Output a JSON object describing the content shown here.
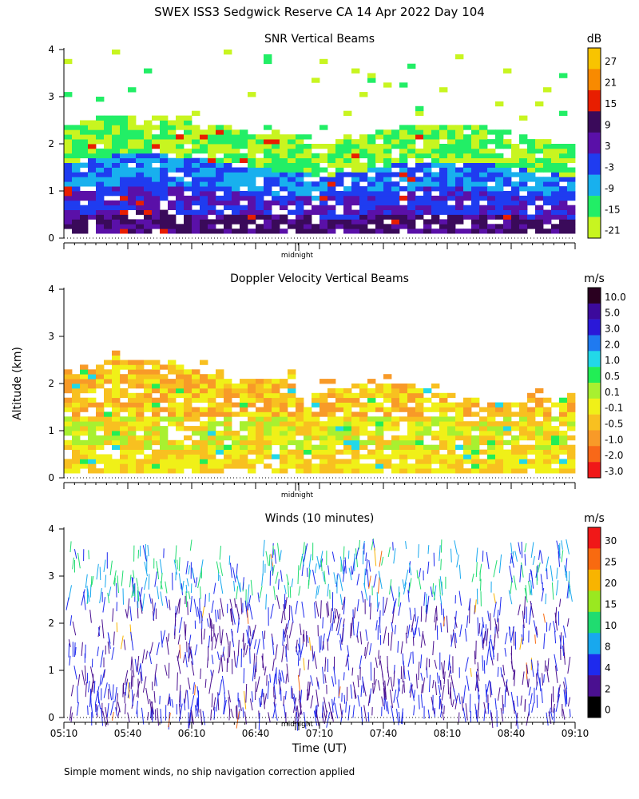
{
  "page": {
    "title": "SWEX ISS3 Sedgwick Reserve CA  14 Apr 2022 Day 104",
    "ylabel": "Altitude (km)",
    "xlabel": "Time (UT)",
    "footer": "Simple moment winds, no ship navigation correction applied",
    "midnight_label": "midnight"
  },
  "chart_data": [
    {
      "type": "heatmap",
      "title": "SNR Vertical Beams",
      "ylim": [
        0,
        4
      ],
      "yticks": [
        "0",
        "1",
        "2",
        "3",
        "4"
      ],
      "colorbar": {
        "unit": "dB",
        "labels": [
          "27",
          "21",
          "15",
          "9",
          "3",
          "-3",
          "-9",
          "-15",
          "-21"
        ],
        "colors": [
          "#f8c400",
          "#f88a00",
          "#e81e00",
          "#3a0a5a",
          "#5a10a8",
          "#1f3cf0",
          "#18b0ee",
          "#22ee66",
          "#c8f520"
        ]
      }
    },
    {
      "type": "heatmap",
      "title": "Doppler Velocity Vertical Beams",
      "ylim": [
        0,
        4
      ],
      "yticks": [
        "0",
        "1",
        "2",
        "3",
        "4"
      ],
      "colorbar": {
        "unit": "m/s",
        "labels": [
          "10.0",
          "5.0",
          "3.0",
          "2.0",
          "1.0",
          "0.5",
          "0.1",
          "-0.1",
          "-0.5",
          "-1.0",
          "-2.0",
          "-3.0"
        ],
        "colors": [
          "#2a0020",
          "#3c0a9c",
          "#2a18d8",
          "#1f7af0",
          "#22d8e8",
          "#22ee55",
          "#a8f030",
          "#f0f018",
          "#f8c020",
          "#f89a28",
          "#f86818",
          "#f01818"
        ]
      }
    },
    {
      "type": "scatter",
      "title": "Winds (10 minutes)",
      "ylim": [
        0,
        4
      ],
      "yticks": [
        "0",
        "1",
        "2",
        "3",
        "4"
      ],
      "xticks": [
        "05:10",
        "05:40",
        "06:10",
        "06:40",
        "07:10",
        "07:40",
        "08:10",
        "08:40",
        "09:10"
      ],
      "colorbar": {
        "unit": "m/s",
        "labels": [
          "30",
          "25",
          "20",
          "15",
          "10",
          "8",
          "4",
          "2",
          "0"
        ],
        "colors": [
          "#f01818",
          "#f86a10",
          "#f8b400",
          "#9ae820",
          "#20dc70",
          "#18a8ee",
          "#1e2aee",
          "#4a1090",
          "#000000"
        ]
      }
    }
  ]
}
